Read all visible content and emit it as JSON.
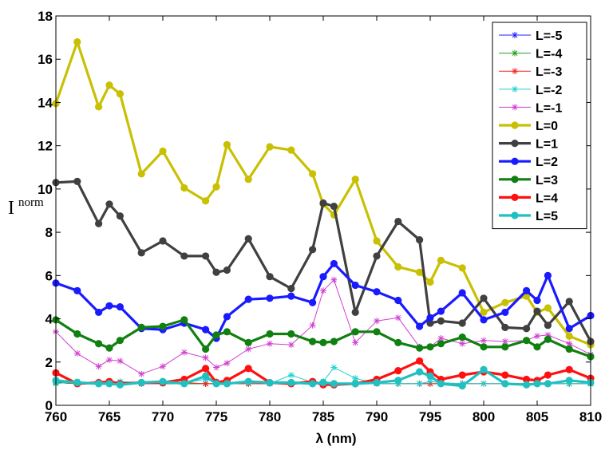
{
  "chart_data": {
    "type": "line",
    "xlabel": "λ (nm)",
    "ylabel": "I",
    "ylabel_sup": "norm",
    "xlim": [
      760,
      810
    ],
    "ylim": [
      0,
      18
    ],
    "xticks": [
      760,
      765,
      770,
      775,
      780,
      785,
      790,
      795,
      800,
      805,
      810
    ],
    "yticks": [
      0,
      2,
      4,
      6,
      8,
      10,
      12,
      14,
      16,
      18
    ],
    "grid": false,
    "legend_position": "top-right",
    "x": [
      760,
      762,
      764,
      765,
      766,
      768,
      770,
      772,
      774,
      775,
      776,
      778,
      780,
      782,
      784,
      785,
      786,
      788,
      790,
      792,
      794,
      795,
      796,
      798,
      800,
      802,
      804,
      805,
      806,
      808,
      810
    ],
    "series": [
      {
        "name": "L=-5",
        "color": "#2020ff",
        "style": "thin-star",
        "values": [
          1.05,
          1.0,
          1.0,
          1.05,
          1.0,
          1.0,
          1.0,
          1.0,
          1.0,
          1.0,
          1.0,
          1.0,
          1.0,
          1.0,
          1.0,
          1.0,
          1.0,
          1.0,
          1.0,
          1.0,
          1.0,
          1.0,
          1.0,
          1.0,
          1.0,
          1.0,
          1.0,
          1.0,
          1.0,
          1.0,
          1.0
        ]
      },
      {
        "name": "L=-4",
        "color": "#20a020",
        "style": "thin-star",
        "values": [
          1.05,
          1.0,
          1.05,
          1.05,
          1.0,
          1.05,
          1.0,
          1.0,
          1.0,
          1.0,
          1.0,
          1.0,
          1.0,
          1.05,
          1.0,
          1.0,
          1.0,
          1.0,
          1.0,
          1.0,
          1.0,
          1.0,
          1.0,
          1.0,
          1.0,
          1.0,
          1.0,
          1.0,
          1.0,
          1.0,
          1.0
        ]
      },
      {
        "name": "L=-3",
        "color": "#ff2020",
        "style": "thin-star",
        "values": [
          1.1,
          1.0,
          1.0,
          1.1,
          1.0,
          1.0,
          1.0,
          1.05,
          1.0,
          1.0,
          1.0,
          1.0,
          1.0,
          1.0,
          1.05,
          1.0,
          1.0,
          1.0,
          1.0,
          1.0,
          1.0,
          1.0,
          1.0,
          1.0,
          1.0,
          1.0,
          1.0,
          1.0,
          1.0,
          1.0,
          1.0
        ]
      },
      {
        "name": "L=-2",
        "color": "#20d0d0",
        "style": "thin-star",
        "values": [
          1.0,
          1.1,
          1.0,
          1.05,
          1.1,
          1.05,
          1.0,
          1.05,
          1.2,
          1.1,
          1.0,
          1.1,
          1.0,
          1.4,
          1.05,
          1.1,
          1.75,
          1.25,
          1.0,
          1.0,
          1.0,
          1.1,
          1.05,
          1.0,
          1.0,
          1.0,
          1.0,
          1.0,
          1.0,
          1.0,
          1.0
        ]
      },
      {
        "name": "L=-1",
        "color": "#d040d0",
        "style": "thin-star",
        "values": [
          3.4,
          2.4,
          1.8,
          2.1,
          2.05,
          1.45,
          1.8,
          2.45,
          2.2,
          1.75,
          1.95,
          2.6,
          2.85,
          2.8,
          3.7,
          5.3,
          5.8,
          2.9,
          3.9,
          4.05,
          2.7,
          2.7,
          3.1,
          2.85,
          3.0,
          2.95,
          3.0,
          3.2,
          3.25,
          2.85,
          2.35
        ]
      },
      {
        "name": "L=0",
        "color": "#c8c000",
        "style": "bold-dot",
        "values": [
          13.95,
          16.8,
          13.8,
          14.8,
          14.4,
          10.7,
          11.75,
          10.05,
          9.45,
          10.1,
          12.05,
          10.45,
          11.95,
          11.8,
          10.7,
          9.3,
          8.8,
          10.45,
          7.6,
          6.4,
          6.15,
          5.7,
          6.7,
          6.35,
          4.3,
          4.75,
          5.05,
          4.3,
          4.5,
          3.2,
          2.8
        ]
      },
      {
        "name": "L=1",
        "color": "#404040",
        "style": "bold-dot",
        "values": [
          10.3,
          10.35,
          8.4,
          9.3,
          8.75,
          7.05,
          7.6,
          6.9,
          6.9,
          6.15,
          6.25,
          7.7,
          5.95,
          5.4,
          7.2,
          9.35,
          9.2,
          4.3,
          6.9,
          8.5,
          7.65,
          3.8,
          3.9,
          3.8,
          4.95,
          3.6,
          3.55,
          4.35,
          3.7,
          4.8,
          2.95
        ]
      },
      {
        "name": "L=2",
        "color": "#1a1aff",
        "style": "bold-dot",
        "values": [
          5.65,
          5.3,
          4.3,
          4.6,
          4.55,
          3.55,
          3.5,
          3.8,
          3.5,
          3.1,
          4.1,
          4.9,
          4.95,
          5.05,
          4.75,
          5.95,
          6.55,
          5.55,
          5.25,
          4.85,
          3.65,
          4.05,
          4.35,
          5.2,
          3.95,
          4.3,
          5.3,
          4.85,
          6.0,
          3.55,
          4.15
        ]
      },
      {
        "name": "L=3",
        "color": "#108010",
        "style": "bold-dot",
        "values": [
          3.95,
          3.3,
          2.85,
          2.65,
          3.0,
          3.6,
          3.65,
          3.95,
          2.6,
          3.25,
          3.4,
          2.9,
          3.3,
          3.3,
          2.95,
          2.9,
          2.95,
          3.4,
          3.4,
          2.9,
          2.65,
          2.7,
          2.85,
          3.15,
          2.7,
          2.7,
          3.0,
          2.7,
          3.05,
          2.6,
          2.25
        ]
      },
      {
        "name": "L=4",
        "color": "#ff1010",
        "style": "bold-dot",
        "values": [
          1.5,
          1.0,
          1.05,
          1.1,
          1.0,
          1.05,
          1.05,
          1.2,
          1.7,
          1.05,
          1.15,
          1.7,
          1.05,
          1.0,
          1.1,
          0.95,
          0.95,
          1.0,
          1.2,
          1.6,
          2.05,
          1.55,
          1.2,
          1.4,
          1.55,
          1.4,
          1.2,
          1.15,
          1.4,
          1.65,
          1.25
        ]
      },
      {
        "name": "L=5",
        "color": "#20c0c0",
        "style": "bold-dot",
        "values": [
          1.15,
          1.05,
          1.0,
          1.0,
          0.95,
          1.05,
          1.1,
          1.0,
          1.35,
          1.0,
          1.0,
          1.1,
          1.05,
          1.05,
          1.0,
          1.05,
          1.0,
          1.0,
          1.05,
          1.15,
          1.55,
          1.35,
          1.0,
          0.9,
          1.65,
          1.0,
          0.95,
          1.0,
          1.0,
          1.15,
          1.05
        ]
      }
    ]
  }
}
